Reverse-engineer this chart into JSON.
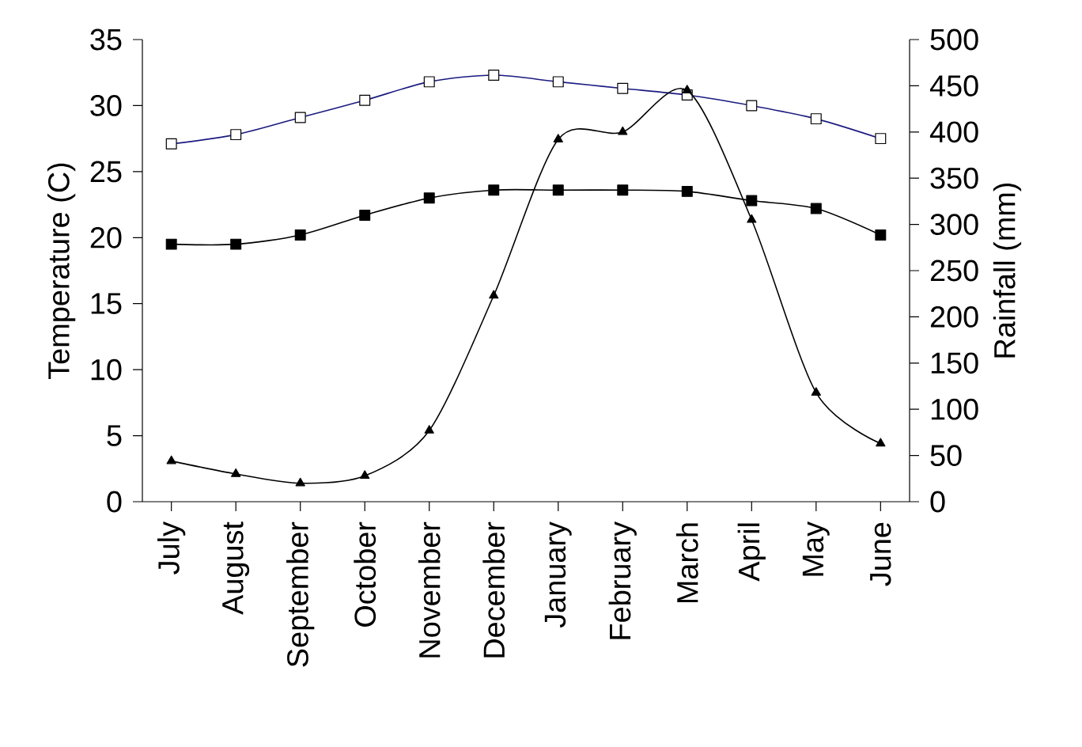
{
  "chart_data": {
    "type": "line",
    "ylabel": "Temperature (C)",
    "y2label": "Rainfall (mm)",
    "categories": [
      "July",
      "August",
      "September",
      "October",
      "November",
      "December",
      "January",
      "February",
      "March",
      "April",
      "May",
      "June"
    ],
    "series": [
      {
        "color": "#1a1a80",
        "marker": "square",
        "values": [
          27.1,
          27.8,
          29.1,
          30.4,
          31.8,
          32.3,
          31.8,
          31.3,
          30.8,
          30.0,
          29.0,
          27.5
        ]
      },
      {
        "color": "#000000",
        "marker": "square",
        "values": [
          19.5,
          19.5,
          20.2,
          21.7,
          23.0,
          23.6,
          23.6,
          23.6,
          23.5,
          22.8,
          22.2,
          20.2
        ]
      },
      {
        "color": "#000000",
        "marker": "triangle",
        "axis": "y2",
        "values": [
          44,
          30,
          20,
          28,
          77,
          223,
          392,
          400,
          445,
          305,
          118,
          63
        ]
      }
    ],
    "ylim": [
      0,
      35
    ],
    "yticks": [
      0,
      5,
      10,
      15,
      20,
      25,
      30,
      35
    ],
    "y2lim": [
      0,
      500
    ],
    "y2ticks": [
      0,
      50,
      100,
      150,
      200,
      250,
      300,
      350,
      400,
      450,
      500
    ],
    "grid": false,
    "line_style": "solid"
  }
}
